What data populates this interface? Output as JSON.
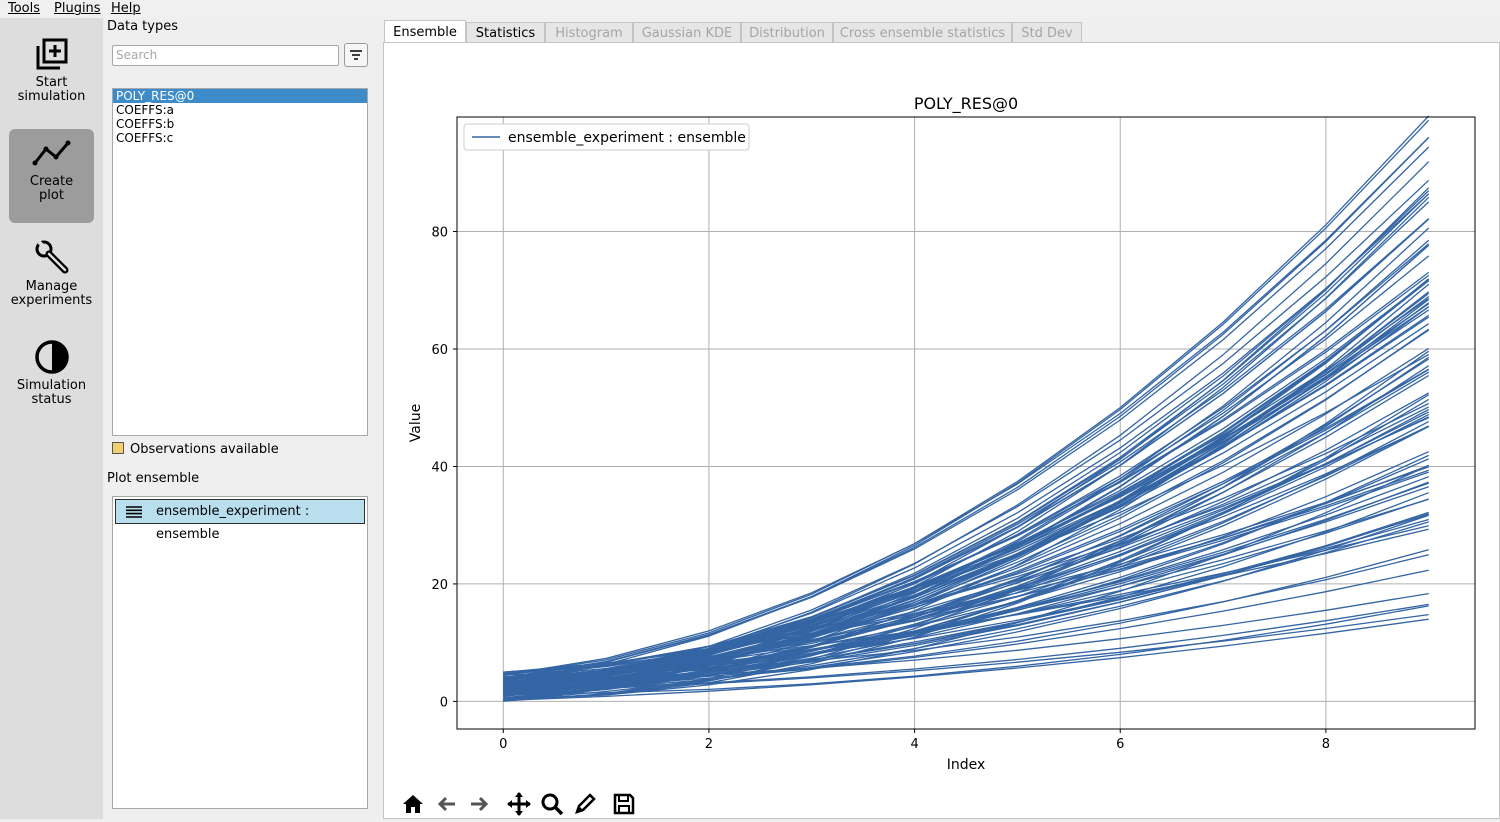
{
  "menu": [
    "Tools",
    "Plugins",
    "Help"
  ],
  "sidebar": {
    "items": [
      {
        "label": "Start\nsimulation",
        "icon": "add-box-icon"
      },
      {
        "label": "Create\nplot",
        "icon": "line-chart-icon",
        "active": true
      },
      {
        "label": "Manage\nexperiments",
        "icon": "wrench-icon"
      },
      {
        "label": "Simulation\nstatus",
        "icon": "half-circle-icon"
      }
    ]
  },
  "panel": {
    "data_types_title": "Data types",
    "search_placeholder": "Search",
    "filter_icon": "filter-icon",
    "data_types": [
      "POLY_RES@0",
      "COEFFS:a",
      "COEFFS:b",
      "COEFFS:c"
    ],
    "selected_data_type": "POLY_RES@0",
    "observations_label": "Observations available",
    "observations_color": "#f1d16e",
    "plot_ensemble_title": "Plot ensemble",
    "ensembles": [
      "ensemble_experiment : ensemble"
    ]
  },
  "tabs": [
    {
      "label": "Ensemble",
      "state": "active"
    },
    {
      "label": "Statistics",
      "state": "enabled"
    },
    {
      "label": "Histogram",
      "state": "disabled"
    },
    {
      "label": "Gaussian KDE",
      "state": "disabled"
    },
    {
      "label": "Distribution",
      "state": "disabled"
    },
    {
      "label": "Cross ensemble statistics",
      "state": "disabled"
    },
    {
      "label": "Std Dev",
      "state": "disabled"
    }
  ],
  "toolbar": [
    "home-icon",
    "back-icon",
    "forward-icon",
    "pan-icon",
    "zoom-icon",
    "edit-icon",
    "save-icon"
  ],
  "chart_data": {
    "type": "line",
    "title": "POLY_RES@0",
    "xlabel": "Index",
    "ylabel": "Value",
    "xlim": [
      -0.45,
      9.45
    ],
    "ylim": [
      -4.7,
      99.5
    ],
    "xticks": [
      0,
      2,
      4,
      6,
      8
    ],
    "yticks": [
      0,
      20,
      40,
      60,
      80
    ],
    "grid": true,
    "legend": "top-left",
    "color": "#3465a4",
    "x": [
      0,
      1,
      2,
      3,
      4,
      5,
      6,
      7,
      8,
      9
    ],
    "series": [
      {
        "name": "ensemble_experiment : ensemble",
        "realization_count": 100,
        "value_at_9_range": [
          8.3,
          94.8
        ],
        "value_at_0_range": [
          0.0,
          5.0
        ]
      }
    ]
  }
}
